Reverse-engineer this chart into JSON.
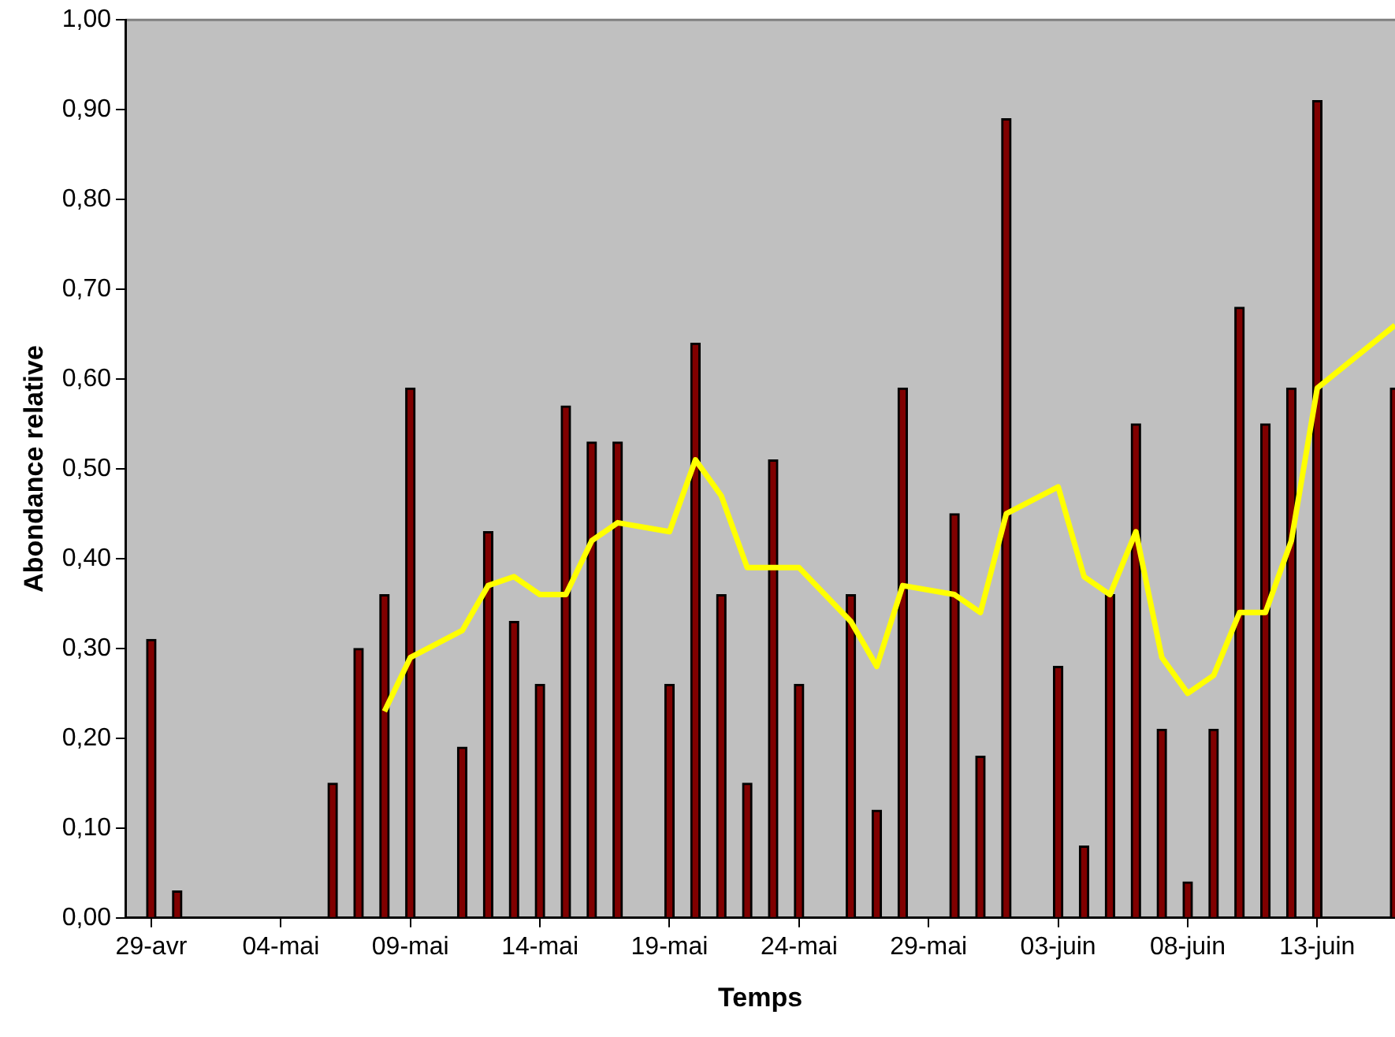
{
  "chart_data": {
    "type": "bar",
    "xlabel": "Temps",
    "ylabel": "Abondance relative",
    "xlim": [
      "--04-28",
      "--06-16"
    ],
    "xticks": [
      {
        "value": "--04-29",
        "label": "29-avr"
      },
      {
        "value": "--05-04",
        "label": "04-mai"
      },
      {
        "value": "--05-09",
        "label": "09-mai"
      },
      {
        "value": "--05-14",
        "label": "14-mai"
      },
      {
        "value": "--05-19",
        "label": "19-mai"
      },
      {
        "value": "--05-24",
        "label": "24-mai"
      },
      {
        "value": "--05-29",
        "label": "29-mai"
      },
      {
        "value": "--06-03",
        "label": "03-juin"
      },
      {
        "value": "--06-08",
        "label": "08-juin"
      },
      {
        "value": "--06-13",
        "label": "13-juin"
      }
    ],
    "ylim": [
      0,
      1
    ],
    "yticks": [
      {
        "value": 0,
        "label": "0,00"
      },
      {
        "value": 0.1,
        "label": "0,10"
      },
      {
        "value": 0.2,
        "label": "0,20"
      },
      {
        "value": 0.3,
        "label": "0,30"
      },
      {
        "value": 0.4,
        "label": "0,40"
      },
      {
        "value": 0.5,
        "label": "0,50"
      },
      {
        "value": 0.6,
        "label": "0,60"
      },
      {
        "value": 0.7,
        "label": "0,70"
      },
      {
        "value": 0.8,
        "label": "0,80"
      },
      {
        "value": 0.9,
        "label": "0,90"
      },
      {
        "value": 1,
        "label": "1,00"
      }
    ],
    "series": [
      {
        "color": "#800000",
        "x": [
          "--04-29",
          "--04-30",
          "--05-06",
          "--05-07",
          "--05-08",
          "--05-09",
          "--05-11",
          "--05-12",
          "--05-13",
          "--05-14",
          "--05-15",
          "--05-16",
          "--05-17",
          "--05-19",
          "--05-20",
          "--05-21",
          "--05-22",
          "--05-23",
          "--05-24",
          "--05-26",
          "--05-27",
          "--05-28",
          "--05-30",
          "--05-31",
          "--06-01",
          "--06-03",
          "--06-04",
          "--06-05",
          "--06-06",
          "--06-07",
          "--06-08",
          "--06-09",
          "--06-10",
          "--06-11",
          "--06-12",
          "--06-13",
          "--06-16"
        ],
        "values": [
          0.31,
          0.03,
          0.15,
          0.3,
          0.36,
          0.59,
          0.19,
          0.43,
          0.33,
          0.26,
          0.57,
          0.53,
          0.53,
          0.26,
          0.64,
          0.36,
          0.15,
          0.51,
          0.26,
          0.36,
          0.12,
          0.59,
          0.45,
          0.18,
          0.89,
          0.28,
          0.08,
          0.36,
          0.55,
          0.21,
          0.04,
          0.21,
          0.68,
          0.55,
          0.59,
          0.91,
          0.59
        ]
      },
      {
        "type": "line",
        "color": "#ffff00",
        "x": [
          "--05-08",
          "--05-09",
          "--05-11",
          "--05-12",
          "--05-13",
          "--05-14",
          "--05-15",
          "--05-16",
          "--05-17",
          "--05-19",
          "--05-20",
          "--05-21",
          "--05-22",
          "--05-24",
          "--05-26",
          "--05-27",
          "--05-28",
          "--05-30",
          "--05-31",
          "--06-01",
          "--06-03",
          "--06-04",
          "--06-05",
          "--06-06",
          "--06-07",
          "--06-08",
          "--06-09",
          "--06-10",
          "--06-11",
          "--06-12",
          "--06-13",
          "--06-16"
        ],
        "values": [
          0.23,
          0.29,
          0.32,
          0.37,
          0.38,
          0.36,
          0.36,
          0.42,
          0.44,
          0.43,
          0.51,
          0.47,
          0.39,
          0.39,
          0.33,
          0.28,
          0.37,
          0.36,
          0.34,
          0.45,
          0.48,
          0.38,
          0.36,
          0.43,
          0.29,
          0.25,
          0.27,
          0.34,
          0.34,
          0.42,
          0.59,
          0.66
        ]
      }
    ]
  }
}
